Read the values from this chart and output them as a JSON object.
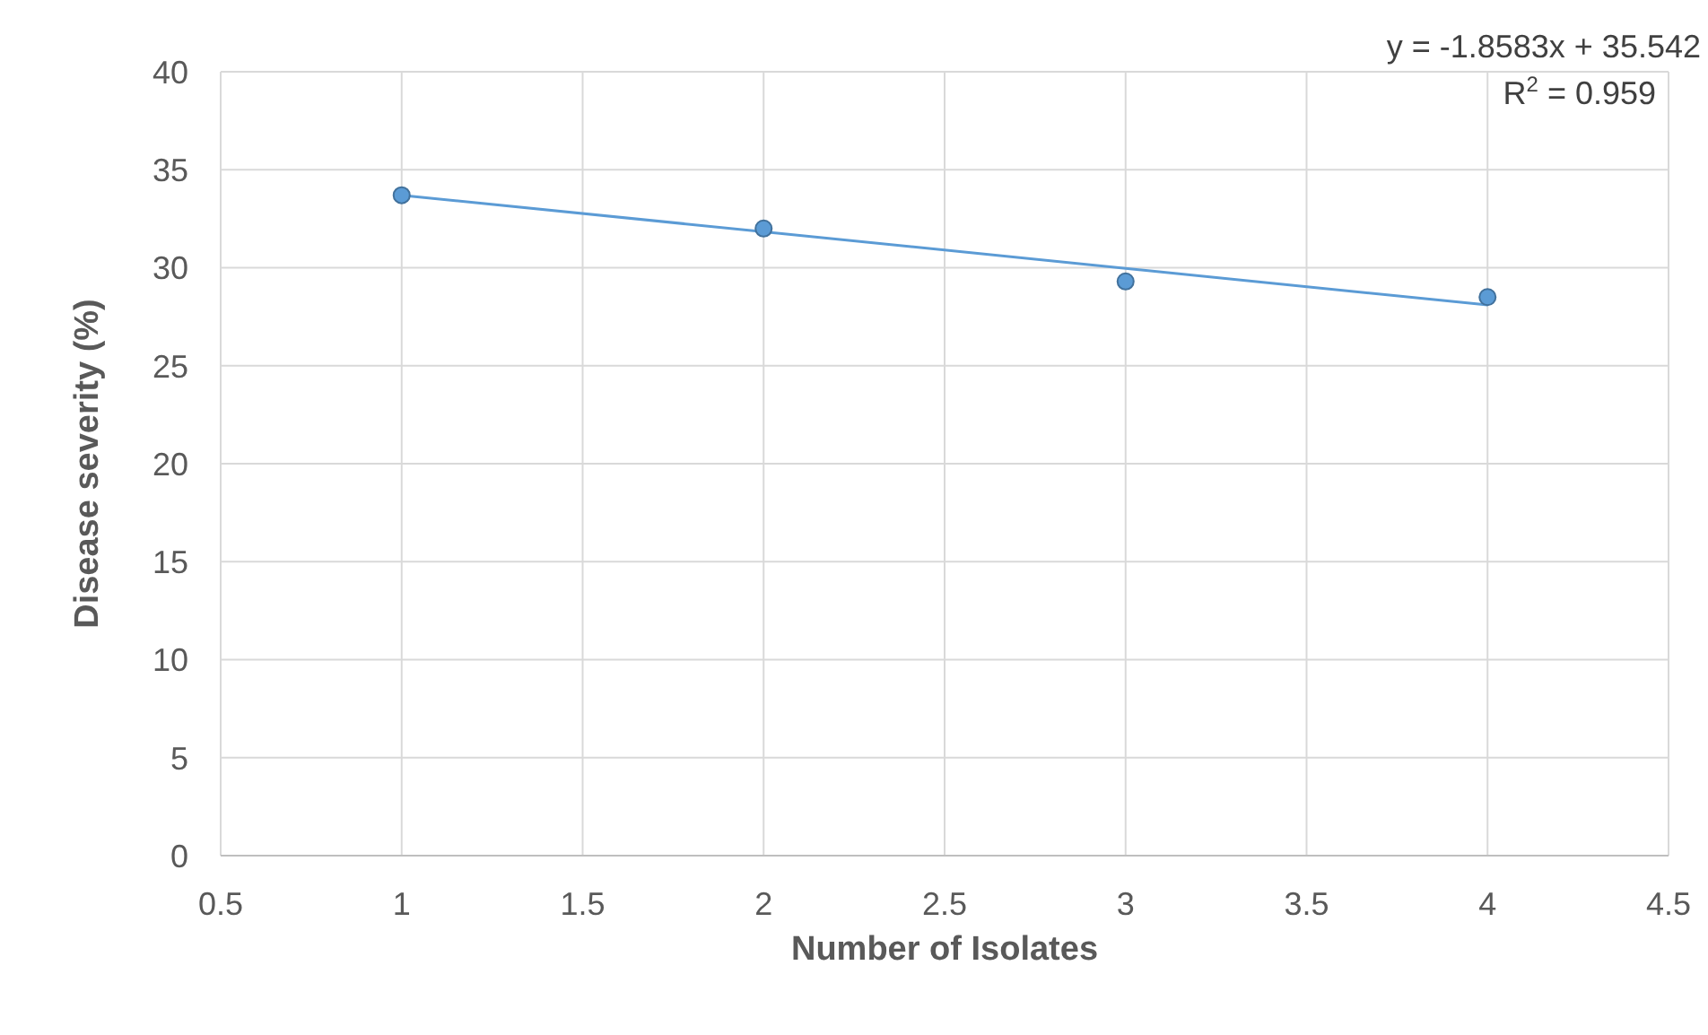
{
  "chart_data": {
    "type": "scatter",
    "xlabel": "Number of Isolates",
    "ylabel": "Disease severity (%)",
    "x": [
      1,
      2,
      3,
      4
    ],
    "series": [
      {
        "color": "#5b9bd5",
        "marker": "circle",
        "values": [
          33.7,
          32.0,
          29.3,
          28.5
        ]
      },
      {
        "type": "line",
        "color": "#5b9bd5",
        "marker": "none",
        "x": [
          1,
          4
        ],
        "values": [
          33.7,
          28.1
        ]
      }
    ],
    "xlim": [
      0.5,
      4.5
    ],
    "xticks": [
      0.5,
      1,
      1.5,
      2,
      2.5,
      3,
      3.5,
      4,
      4.5
    ],
    "ylim": [
      0,
      40
    ],
    "yticks": [
      0,
      5,
      10,
      15,
      20,
      25,
      30,
      35,
      40
    ],
    "grid": true,
    "annotations": [
      "y = -1.8583x + 35.542",
      "R$^{2}$ = 0.959"
    ]
  }
}
